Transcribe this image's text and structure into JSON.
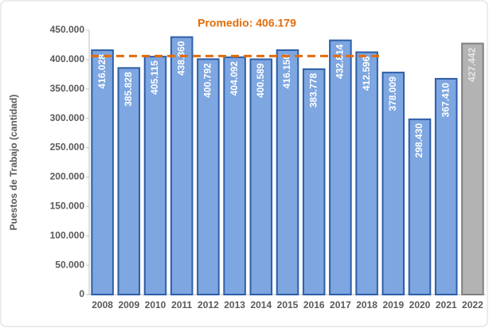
{
  "chart_data": {
    "type": "bar",
    "y_label": "Puestos de Trabajo (cantidad)",
    "categories": [
      "2008",
      "2009",
      "2010",
      "2011",
      "2012",
      "2013",
      "2014",
      "2015",
      "2016",
      "2017",
      "2018",
      "2019",
      "2020",
      "2021",
      "2022"
    ],
    "values": [
      416028,
      385828,
      405115,
      438360,
      400792,
      404092,
      400589,
      416150,
      383778,
      432814,
      412596,
      378009,
      298430,
      367410,
      427442
    ],
    "value_labels": [
      "416.028",
      "385.828",
      "405.115",
      "438.360",
      "400.792",
      "404.092",
      "400.589",
      "416.150",
      "383.778",
      "432.814",
      "412.596",
      "378.009",
      "298.430",
      "367.410",
      "427.442"
    ],
    "colors": [
      "#7ea6e0",
      "#7ea6e0",
      "#7ea6e0",
      "#7ea6e0",
      "#7ea6e0",
      "#7ea6e0",
      "#7ea6e0",
      "#7ea6e0",
      "#7ea6e0",
      "#7ea6e0",
      "#7ea6e0",
      "#7ea6e0",
      "#7ea6e0",
      "#7ea6e0",
      "#b3b3b3"
    ],
    "average": {
      "label": "Promedio: 406.179",
      "value": 406179,
      "color": "#e36c0a"
    },
    "ylim": [
      0,
      450000
    ],
    "yticks": [
      0,
      {
        "value": 50000,
        "label": "50.000"
      },
      {
        "value": 100000,
        "label": "100.000"
      },
      {
        "value": 150000,
        "label": "150.000"
      },
      {
        "value": 200000,
        "label": "200.000"
      },
      {
        "value": 250000,
        "label": "250.000"
      },
      {
        "value": 300000,
        "label": "300.000"
      },
      {
        "value": 350000,
        "label": "350.000"
      },
      {
        "value": 400000,
        "label": "400.000"
      },
      {
        "value": 450000,
        "label": "450.000"
      }
    ],
    "grid": false
  }
}
